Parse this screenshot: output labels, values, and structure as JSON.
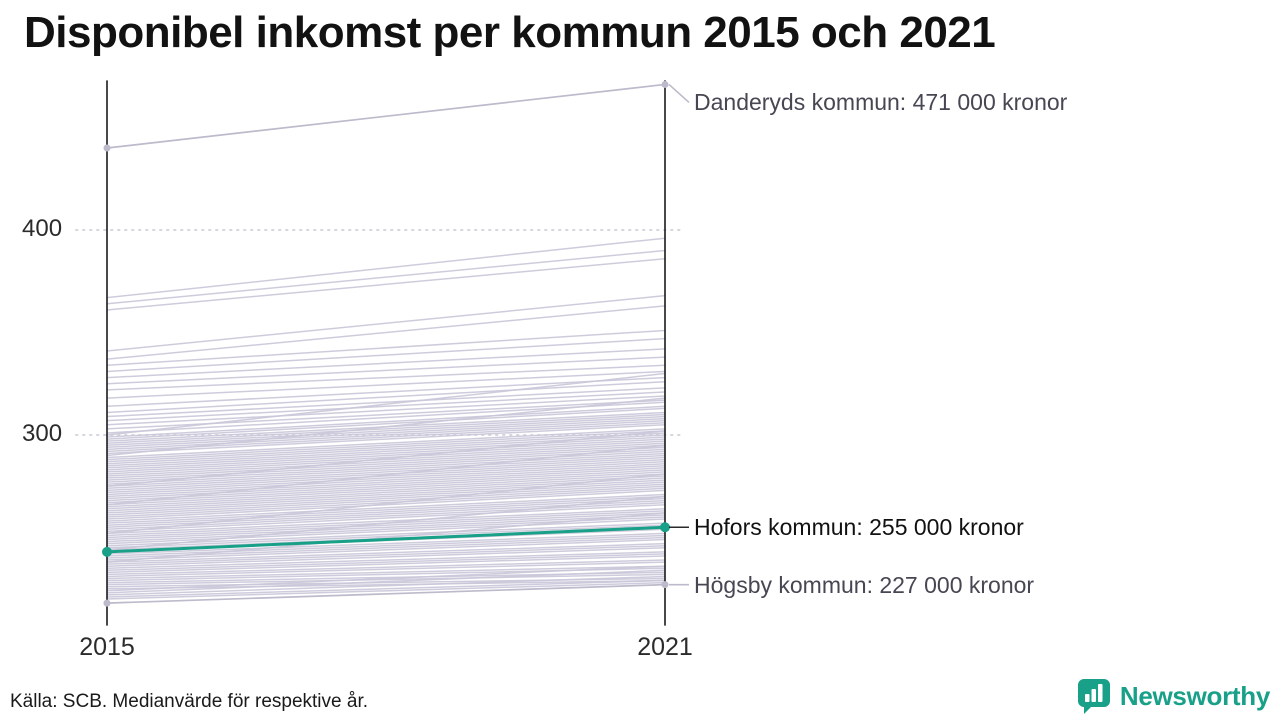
{
  "page": {
    "source_note": "Källa: SCB. Medianvärde för respektive år.",
    "logo_text": "Newsworthy"
  },
  "colors": {
    "accent": "#18A088",
    "background_line": "#C9C6D8",
    "labeled_gray": "#BDBACB",
    "axis": "#1A1A1A",
    "gridline": "#D8D5DF",
    "annotation_text": "#474753",
    "title_text": "#121212"
  },
  "chart_data": {
    "type": "line",
    "subtype": "slopegraph",
    "title": "Disponibel inkomst per kommun 2015 och 2021",
    "x": [
      2015,
      2021
    ],
    "x_labels": [
      "2015",
      "2021"
    ],
    "unit": "tusen kronor (000 kronor)",
    "ylim": [
      207,
      473
    ],
    "yticks": [
      {
        "value": 300,
        "label": "300"
      },
      {
        "value": 400,
        "label": "400"
      }
    ],
    "grid": "dotted horizontal lines at yticks",
    "legend": "none",
    "labeled_series": [
      {
        "name": "Danderyds kommun",
        "values": [
          440,
          471
        ],
        "annotation": "Danderyds kommun: 471 000 kronor",
        "emphasis": false,
        "dy": 18
      },
      {
        "name": "Hofors kommun",
        "values": [
          243,
          255
        ],
        "annotation": "Hofors kommun: 255 000 kronor",
        "emphasis": true,
        "dy": 0
      },
      {
        "name": "Högsby kommun",
        "values": [
          218,
          227
        ],
        "annotation": "Högsby kommun: 227 000 kronor",
        "emphasis": false,
        "dy": 0
      }
    ],
    "background_series": [
      [
        367,
        396
      ],
      [
        364,
        390
      ],
      [
        361,
        386
      ],
      [
        341,
        368
      ],
      [
        337,
        363
      ],
      [
        334,
        351
      ],
      [
        331,
        347
      ],
      [
        328,
        342
      ],
      [
        325,
        338
      ],
      [
        322,
        334
      ],
      [
        318,
        331
      ],
      [
        314,
        328
      ],
      [
        311,
        326
      ],
      [
        309,
        323
      ],
      [
        307,
        321
      ],
      [
        305,
        319
      ],
      [
        303,
        317
      ],
      [
        301,
        316
      ],
      [
        300,
        330
      ],
      [
        299,
        314
      ],
      [
        298,
        313
      ],
      [
        297,
        311
      ],
      [
        296,
        310
      ],
      [
        295,
        309
      ],
      [
        294,
        308
      ],
      [
        293,
        307
      ],
      [
        292,
        306
      ],
      [
        291,
        305
      ],
      [
        290,
        318
      ],
      [
        289,
        303
      ],
      [
        288,
        302
      ],
      [
        287,
        301
      ],
      [
        286,
        300
      ],
      [
        285,
        299
      ],
      [
        284,
        298
      ],
      [
        283,
        297
      ],
      [
        282,
        296
      ],
      [
        281,
        295
      ],
      [
        280,
        294
      ],
      [
        279,
        293
      ],
      [
        278,
        292
      ],
      [
        277,
        291
      ],
      [
        276,
        290
      ],
      [
        275,
        302
      ],
      [
        275,
        289
      ],
      [
        274,
        288
      ],
      [
        273,
        287
      ],
      [
        272,
        286
      ],
      [
        271,
        285
      ],
      [
        270,
        284
      ],
      [
        269,
        283
      ],
      [
        268,
        282
      ],
      [
        267,
        281
      ],
      [
        266,
        295
      ],
      [
        266,
        280
      ],
      [
        265,
        279
      ],
      [
        264,
        278
      ],
      [
        263,
        277
      ],
      [
        262,
        276
      ],
      [
        261,
        275
      ],
      [
        260,
        274
      ],
      [
        259,
        273
      ],
      [
        258,
        271
      ],
      [
        257,
        270
      ],
      [
        256,
        269
      ],
      [
        255,
        268
      ],
      [
        254,
        267
      ],
      [
        253,
        266
      ],
      [
        252,
        281
      ],
      [
        252,
        264
      ],
      [
        251,
        263
      ],
      [
        250,
        262
      ],
      [
        249,
        261
      ],
      [
        248,
        260
      ],
      [
        247,
        259
      ],
      [
        246,
        257
      ],
      [
        245,
        256
      ],
      [
        244,
        270
      ],
      [
        244,
        255
      ],
      [
        243,
        254
      ],
      [
        242,
        252
      ],
      [
        241,
        251
      ],
      [
        240,
        250
      ],
      [
        239,
        249
      ],
      [
        238,
        262
      ],
      [
        238,
        247
      ],
      [
        237,
        246
      ],
      [
        236,
        245
      ],
      [
        235,
        243
      ],
      [
        234,
        242
      ],
      [
        233,
        241
      ],
      [
        232,
        239
      ],
      [
        231,
        238
      ],
      [
        230,
        236
      ],
      [
        229,
        235
      ],
      [
        228,
        233
      ],
      [
        227,
        232
      ],
      [
        226,
        230
      ],
      [
        225,
        229
      ],
      [
        224,
        236
      ],
      [
        223,
        234
      ],
      [
        222,
        231
      ],
      [
        221,
        229
      ],
      [
        220,
        228
      ]
    ]
  }
}
